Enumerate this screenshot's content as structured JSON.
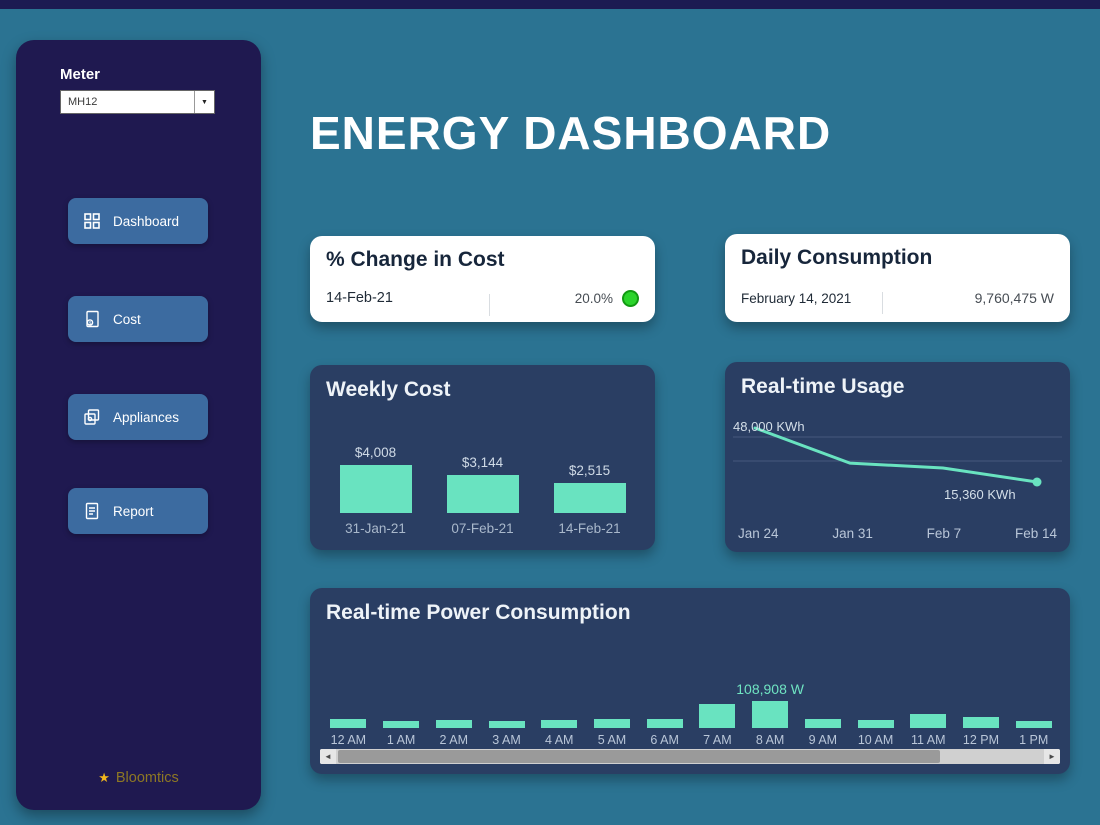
{
  "window": {
    "title": "ENERGY DASHBOARD"
  },
  "sidebar": {
    "meter_label": "Meter",
    "meter_value": "MH12",
    "nav_items": [
      {
        "label": "Dashboard",
        "icon": "dashboard-grid-icon"
      },
      {
        "label": "Cost",
        "icon": "cost-document-icon"
      },
      {
        "label": "Appliances",
        "icon": "appliances-copy-icon"
      },
      {
        "label": "Report",
        "icon": "report-document-icon"
      }
    ],
    "brand": {
      "name": "Bloomtics"
    }
  },
  "icons": {
    "dropdown_arrow": "▼",
    "star": "★",
    "scroll_left": "◄",
    "scroll_right": "►"
  },
  "kpis": {
    "pct_change": {
      "title": "% Change in Cost",
      "date": "14-Feb-21",
      "value": "20.0%",
      "indicator_color": "#2bd42b"
    },
    "daily": {
      "title": "Daily Consumption",
      "date": "February 14, 2021",
      "value": "9,760,475 W"
    }
  },
  "colors": {
    "background": "#2b7392",
    "topbar": "#1c1b52",
    "sidebar": "#1f1950",
    "nav_button": "#3c6ba0",
    "card_dark": "#2a3e63",
    "accent_mint": "#69e3c0",
    "indicator_green": "#2bd42b"
  },
  "chart_data": [
    {
      "id": "weekly_cost",
      "type": "bar",
      "title": "Weekly Cost",
      "categories": [
        "31-Jan-21",
        "07-Feb-21",
        "14-Feb-21"
      ],
      "values": [
        4008,
        3144,
        2515
      ],
      "value_labels": [
        "$4,008",
        "$3,144",
        "$2,515"
      ],
      "bar_color": "#69e3c0"
    },
    {
      "id": "realtime_usage",
      "type": "line",
      "title": "Real-time Usage",
      "x": [
        "Jan 24",
        "Jan 31",
        "Feb 7",
        "Feb 14"
      ],
      "values": [
        48000,
        26800,
        23800,
        15360
      ],
      "annotations": [
        {
          "x": "Jan 24",
          "label": "48,000 KWh"
        },
        {
          "x": "Feb 14",
          "label": "15,360 KWh"
        }
      ],
      "line_color": "#69e3c0",
      "ylim": [
        14000,
        50000
      ],
      "grid": "horizontal"
    },
    {
      "id": "realtime_power",
      "type": "bar",
      "title": "Real-time Power Consumption",
      "categories": [
        "12 AM",
        "1 AM",
        "2 AM",
        "3 AM",
        "4 AM",
        "5 AM",
        "6 AM",
        "7 AM",
        "8 AM",
        "9 AM",
        "10 AM",
        "11 AM",
        "12 PM",
        "1 PM"
      ],
      "values": [
        36000,
        28000,
        32000,
        28000,
        32000,
        36000,
        36000,
        97000,
        108908,
        36000,
        32000,
        56000,
        44000,
        28000
      ],
      "labeled_point": {
        "category": "8 AM",
        "label": "108,908 W"
      },
      "bar_color": "#69e3c0"
    }
  ]
}
